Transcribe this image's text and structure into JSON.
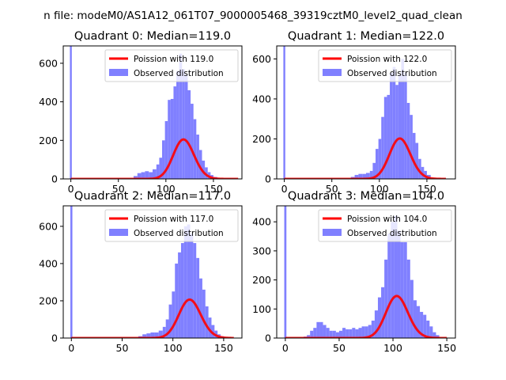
{
  "figure": {
    "suptitle": "n file: modeM0/AS1A12_061T07_9000005468_39319cztM0_level2_quad_clean"
  },
  "chart_data": [
    {
      "type": "bar",
      "title": "Quadrant 0: Median=119.0",
      "xlim": [
        -8,
        180
      ],
      "ylim": [
        0,
        690
      ],
      "xticks": [
        0,
        50,
        100,
        150
      ],
      "yticks": [
        0,
        200,
        400,
        600
      ],
      "legend": "top-right",
      "poisson": {
        "label": "Poission with 119.0",
        "mean": 119.0,
        "color": "#ff0000",
        "x_range": [
          0,
          176
        ],
        "scale": 5600
      },
      "observed": {
        "label": "Observed distribution",
        "color": "#8080ff",
        "bins": [
          [
            -1,
            1,
            690
          ],
          [
            66,
            70,
            15
          ],
          [
            70,
            74,
            30
          ],
          [
            74,
            78,
            35
          ],
          [
            78,
            82,
            40
          ],
          [
            82,
            86,
            35
          ],
          [
            86,
            90,
            50
          ],
          [
            90,
            93,
            75
          ],
          [
            93,
            96,
            110
          ],
          [
            96,
            99,
            200
          ],
          [
            99,
            102,
            300
          ],
          [
            102,
            105,
            410
          ],
          [
            105,
            108,
            415
          ],
          [
            108,
            111,
            480
          ],
          [
            111,
            114,
            560
          ],
          [
            114,
            117,
            650
          ],
          [
            117,
            120,
            570
          ],
          [
            120,
            123,
            540
          ],
          [
            123,
            126,
            460
          ],
          [
            126,
            129,
            390
          ],
          [
            129,
            132,
            310
          ],
          [
            132,
            135,
            230
          ],
          [
            135,
            138,
            150
          ],
          [
            138,
            141,
            95
          ],
          [
            141,
            144,
            60
          ],
          [
            144,
            147,
            35
          ],
          [
            147,
            150,
            20
          ],
          [
            150,
            154,
            10
          ]
        ]
      }
    },
    {
      "type": "bar",
      "title": "Quadrant 1: Median=122.0",
      "xlim": [
        -8,
        180
      ],
      "ylim": [
        0,
        665
      ],
      "xticks": [
        0,
        50,
        100,
        150
      ],
      "yticks": [
        0,
        200,
        400,
        600
      ],
      "legend": "top-right",
      "poisson": {
        "label": "Poission with 122.0",
        "mean": 122.0,
        "color": "#ff0000",
        "x_range": [
          0,
          170
        ],
        "scale": 5600
      },
      "observed": {
        "label": "Observed distribution",
        "color": "#8080ff",
        "bins": [
          [
            -1,
            1,
            665
          ],
          [
            70,
            74,
            10
          ],
          [
            74,
            78,
            20
          ],
          [
            78,
            82,
            25
          ],
          [
            82,
            86,
            25
          ],
          [
            86,
            90,
            30
          ],
          [
            90,
            93,
            40
          ],
          [
            93,
            96,
            80
          ],
          [
            96,
            99,
            150
          ],
          [
            99,
            102,
            200
          ],
          [
            102,
            105,
            310
          ],
          [
            105,
            108,
            410
          ],
          [
            108,
            111,
            420
          ],
          [
            111,
            114,
            530
          ],
          [
            114,
            117,
            560
          ],
          [
            117,
            120,
            470
          ],
          [
            120,
            123,
            520
          ],
          [
            123,
            126,
            600
          ],
          [
            126,
            129,
            530
          ],
          [
            129,
            132,
            380
          ],
          [
            132,
            135,
            320
          ],
          [
            135,
            138,
            230
          ],
          [
            138,
            141,
            180
          ],
          [
            141,
            144,
            100
          ],
          [
            144,
            147,
            60
          ],
          [
            147,
            150,
            40
          ],
          [
            150,
            154,
            20
          ]
        ]
      }
    },
    {
      "type": "bar",
      "title": "Quadrant 2: Median=117.0",
      "xlim": [
        -8,
        168
      ],
      "ylim": [
        0,
        710
      ],
      "xticks": [
        0,
        50,
        100,
        150
      ],
      "yticks": [
        0,
        200,
        400,
        600
      ],
      "legend": "top-right",
      "poisson": {
        "label": "Poission with 117.0",
        "mean": 117.0,
        "color": "#ff0000",
        "x_range": [
          0,
          160
        ],
        "scale": 5600
      },
      "observed": {
        "label": "Observed distribution",
        "color": "#8080ff",
        "bins": [
          [
            -1,
            1,
            710
          ],
          [
            66,
            70,
            10
          ],
          [
            70,
            74,
            20
          ],
          [
            74,
            78,
            25
          ],
          [
            78,
            82,
            30
          ],
          [
            82,
            86,
            30
          ],
          [
            86,
            90,
            40
          ],
          [
            90,
            93,
            60
          ],
          [
            93,
            96,
            100
          ],
          [
            96,
            99,
            180
          ],
          [
            99,
            102,
            250
          ],
          [
            102,
            105,
            400
          ],
          [
            105,
            108,
            460
          ],
          [
            108,
            111,
            510
          ],
          [
            111,
            114,
            600
          ],
          [
            114,
            117,
            610
          ],
          [
            117,
            120,
            560
          ],
          [
            120,
            123,
            510
          ],
          [
            123,
            126,
            430
          ],
          [
            126,
            129,
            320
          ],
          [
            129,
            132,
            260
          ],
          [
            132,
            135,
            170
          ],
          [
            135,
            138,
            110
          ],
          [
            138,
            141,
            70
          ],
          [
            141,
            144,
            40
          ],
          [
            144,
            147,
            20
          ],
          [
            147,
            150,
            10
          ]
        ]
      }
    },
    {
      "type": "bar",
      "title": "Quadrant 3: Median=104.0",
      "xlim": [
        -8,
        158
      ],
      "ylim": [
        0,
        455
      ],
      "xticks": [
        0,
        50,
        100,
        150
      ],
      "yticks": [
        0,
        100,
        200,
        300,
        400
      ],
      "legend": "top-right",
      "poisson": {
        "label": "Poission with 104.0",
        "mean": 104.0,
        "color": "#ff0000",
        "x_range": [
          0,
          150
        ],
        "scale": 3700
      },
      "observed": {
        "label": "Observed distribution",
        "color": "#8080ff",
        "bins": [
          [
            -1,
            1,
            455
          ],
          [
            17,
            20,
            5
          ],
          [
            20,
            23,
            10
          ],
          [
            23,
            26,
            25
          ],
          [
            26,
            29,
            35
          ],
          [
            29,
            32,
            55
          ],
          [
            32,
            35,
            55
          ],
          [
            35,
            38,
            45
          ],
          [
            38,
            41,
            35
          ],
          [
            41,
            44,
            25
          ],
          [
            44,
            47,
            25
          ],
          [
            47,
            50,
            20
          ],
          [
            50,
            53,
            25
          ],
          [
            53,
            56,
            35
          ],
          [
            56,
            59,
            30
          ],
          [
            59,
            62,
            30
          ],
          [
            62,
            65,
            35
          ],
          [
            65,
            68,
            30
          ],
          [
            68,
            71,
            35
          ],
          [
            71,
            74,
            40
          ],
          [
            74,
            77,
            40
          ],
          [
            77,
            80,
            45
          ],
          [
            80,
            83,
            60
          ],
          [
            83,
            86,
            95
          ],
          [
            86,
            89,
            140
          ],
          [
            89,
            92,
            175
          ],
          [
            92,
            95,
            270
          ],
          [
            95,
            98,
            360
          ],
          [
            98,
            101,
            400
          ],
          [
            101,
            104,
            420
          ],
          [
            104,
            107,
            370
          ],
          [
            107,
            110,
            330
          ],
          [
            110,
            113,
            330
          ],
          [
            113,
            116,
            270
          ],
          [
            116,
            119,
            200
          ],
          [
            119,
            122,
            130
          ],
          [
            122,
            125,
            110
          ],
          [
            125,
            128,
            90
          ],
          [
            128,
            131,
            80
          ],
          [
            131,
            134,
            60
          ],
          [
            134,
            137,
            40
          ],
          [
            137,
            140,
            20
          ],
          [
            140,
            143,
            10
          ]
        ]
      }
    }
  ]
}
